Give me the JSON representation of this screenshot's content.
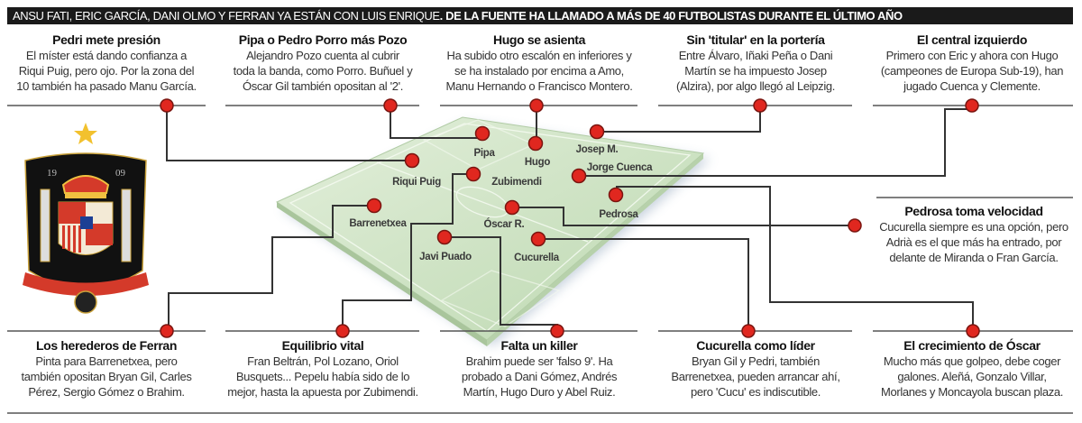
{
  "header": {
    "lead": "ANSU FATI, ERIC GARCÍA, DANI OLMO Y FERRAN YA ESTÁN CON LUIS ENRIQUE",
    "bold": ". DE LA FUENTE HA LLAMADO A MÁS DE 40 FUTBOLISTAS DURANTE EL ÚLTIMO AÑO"
  },
  "top_blocks": [
    {
      "title": "Pedri mete presión",
      "lines": [
        "El míster está dando confianza a",
        "Riqui Puig, pero ojo. Por la zona del",
        "10 también ha pasado Manu García."
      ]
    },
    {
      "title": "Pipa o Pedro Porro más Pozo",
      "lines": [
        "Alejandro Pozo cuenta al cubrir",
        "toda la banda, como Porro. Buñuel y",
        "Óscar Gil también opositan al '2'."
      ]
    },
    {
      "title": "Hugo se asienta",
      "lines": [
        "Ha subido otro escalón en inferiores y",
        "se ha instalado por encima a Amo,",
        "Manu Hernando o Francisco Montero."
      ]
    },
    {
      "title": "Sin 'titular' en la portería",
      "lines": [
        "Entre Álvaro, Iñaki Peña o Dani",
        "Martín se ha impuesto Josep",
        "(Alzira), por algo llegó al Leipzig."
      ]
    },
    {
      "title": "El central izquierdo",
      "lines": [
        "Primero con Eric y ahora con Hugo",
        "(campeones de Europa Sub-19), han",
        "jugado Cuenca y Clemente."
      ]
    }
  ],
  "side_block": {
    "title": "Pedrosa toma velocidad",
    "lines": [
      "Cucurella siempre es una opción, pero",
      "Adrià es el que más ha entrado, por",
      "delante de Miranda o Fran García."
    ]
  },
  "bottom_blocks": [
    {
      "title": "Los herederos de Ferran",
      "lines": [
        "Pinta para Barrenetxea, pero",
        "también opositan Bryan Gil, Carles",
        "Pérez, Sergio Gómez o Brahim."
      ]
    },
    {
      "title": "Equilibrio vital",
      "lines": [
        "Fran Beltrán, Pol Lozano, Oriol",
        "Busquets... Pepelu había sido de lo",
        "mejor, hasta la apuesta por Zubimendi."
      ]
    },
    {
      "title": "Falta un killer",
      "lines": [
        "Brahim puede ser 'falso 9'. Ha",
        "probado a Dani Gómez, Andrés",
        "Martín, Hugo Duro y Abel Ruiz."
      ]
    },
    {
      "title": "Cucurella como líder",
      "lines": [
        "Bryan Gil y Pedri, también",
        "Barrenetxea, pueden arrancar ahí,",
        "pero 'Cucu' es indiscutible."
      ]
    },
    {
      "title": "El crecimiento de Óscar",
      "lines": [
        "Mucho más que golpeo, debe coger",
        "galones. Aleñá, Gonzalo Villar,",
        "Morlanes y Moncayola buscan plaza."
      ]
    }
  ],
  "players": [
    "Pipa",
    "Hugo",
    "Josep M.",
    "Riqui Puig",
    "Zubimendi",
    "Jorge Cuenca",
    "Pedrosa",
    "Barrenetxea",
    "Óscar R.",
    "Javi Puado",
    "Cucurella"
  ],
  "crest": {
    "text": "19 09",
    "name": "crest-spain"
  },
  "colors": {
    "dot": "#e0271f",
    "pitch": "#cfe3c2",
    "header_bg": "#1a1a1a",
    "star": "#f2c12e"
  }
}
